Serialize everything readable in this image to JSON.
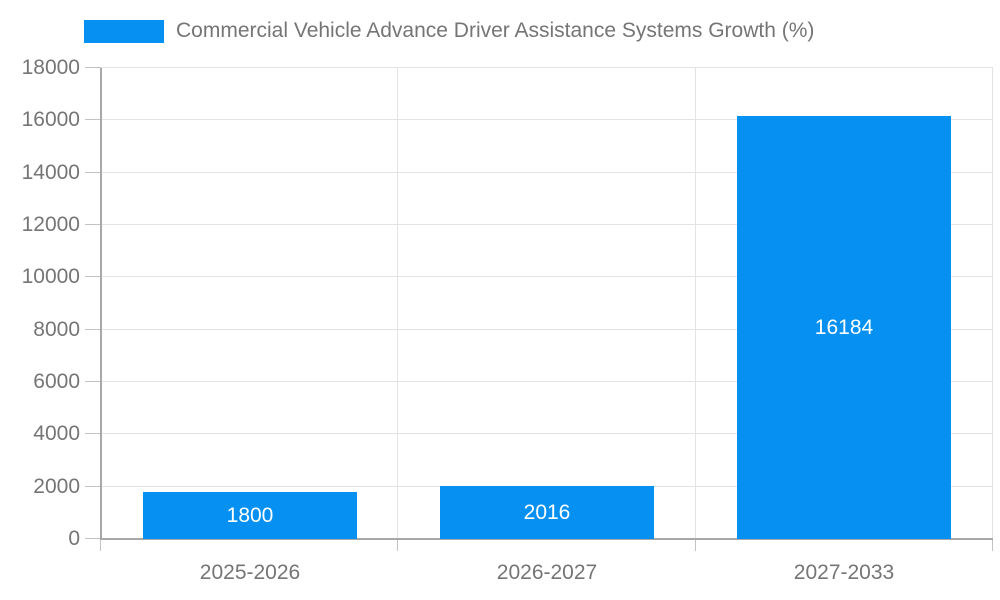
{
  "chart_data": {
    "type": "bar",
    "title": "Commercial Vehicle Advance Driver Assistance Systems Growth (%)",
    "categories": [
      "2025-2026",
      "2026-2027",
      "2027-2033"
    ],
    "values": [
      1800,
      2016,
      16184
    ],
    "bar_labels": [
      "1800",
      "2016",
      "16184"
    ],
    "y_ticks": [
      0,
      2000,
      4000,
      6000,
      8000,
      10000,
      12000,
      14000,
      16000,
      18000
    ],
    "ylim": [
      0,
      18000
    ],
    "xlabel": "",
    "ylabel": "",
    "grid": true,
    "legend_position": "top-left",
    "colors": {
      "bar": "#0590F2",
      "axis_text": "#757575",
      "bar_value_text": "#ffffff",
      "gridline": "#e3e3e3",
      "axis_line": "#a8a8a8",
      "tick": "#c2c2c2"
    }
  }
}
